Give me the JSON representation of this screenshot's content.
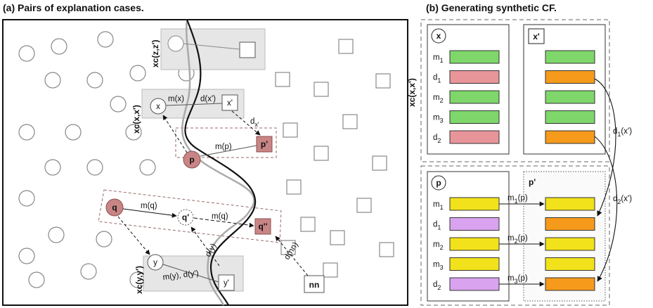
{
  "panel_a": {
    "title": "(a) Pairs of explanation cases.",
    "nodes": {
      "x": "x",
      "x_prime": "x'",
      "p": "p",
      "p_prime": "p'",
      "q": "q",
      "q_prime": "q'",
      "q_dprime": "q''",
      "y": "y",
      "y_prime": "y'",
      "nn": "nn"
    },
    "pair_labels": {
      "zz": "xc(z,z')",
      "xx": "xc(x,x')",
      "yy": "xc(y,y')"
    },
    "edge_labels": {
      "m_x": "m(x)",
      "d_x_prime": "d(x')",
      "d_x_prime_arrow": "d",
      "d_x_prime_arrow_sub": "x'",
      "m_p": "m(p)",
      "m_q_1": "m(q)",
      "m_q_2": "m(q)",
      "m_y_d_y_prime": "m(y), d(y')",
      "d_y": "d(y)",
      "d_nn": "d(nn)"
    }
  },
  "panel_b": {
    "title": "(b) Generating synthetic CF.",
    "pair_label": "xc(x,x')",
    "top_left_box": "x",
    "top_right_box": "x'",
    "bottom_left_box": "p",
    "bottom_right_box": "p'",
    "rows_top": [
      {
        "base": "m",
        "sub": "1",
        "left_color": "#7fd66b",
        "right_color": "#7fd66b"
      },
      {
        "base": "d",
        "sub": "1",
        "left_color": "#e8959a",
        "right_color": "#f59a1b"
      },
      {
        "base": "m",
        "sub": "2",
        "left_color": "#7fd66b",
        "right_color": "#7fd66b"
      },
      {
        "base": "m",
        "sub": "3",
        "left_color": "#7fd66b",
        "right_color": "#7fd66b"
      },
      {
        "base": "d",
        "sub": "2",
        "left_color": "#e8959a",
        "right_color": "#f59a1b"
      }
    ],
    "rows_bottom": [
      {
        "base": "m",
        "sub": "1",
        "left_color": "#f2e21b",
        "right_color": "#f2e21b"
      },
      {
        "base": "d",
        "sub": "1",
        "left_color": "#d9a3f0",
        "right_color": "#f59a1b"
      },
      {
        "base": "m",
        "sub": "2",
        "left_color": "#f2e21b",
        "right_color": "#f2e21b"
      },
      {
        "base": "m",
        "sub": "3",
        "left_color": "#f2e21b",
        "right_color": "#f2e21b"
      },
      {
        "base": "d",
        "sub": "2",
        "left_color": "#d9a3f0",
        "right_color": "#f59a1b"
      }
    ],
    "copy_arrows": [
      {
        "base": "m",
        "sub": "1",
        "arg": "(p)"
      },
      {
        "base": "m",
        "sub": "2",
        "arg": "(p)"
      },
      {
        "base": "m",
        "sub": "3",
        "arg": "(p)"
      }
    ],
    "curve_labels": [
      {
        "base": "d",
        "sub": "1",
        "arg": "(x')"
      },
      {
        "base": "d",
        "sub": "2",
        "arg": "(x')"
      }
    ]
  },
  "colors": {
    "highlight_fill": "#c98585",
    "pair_band": "#e6e6e6"
  }
}
